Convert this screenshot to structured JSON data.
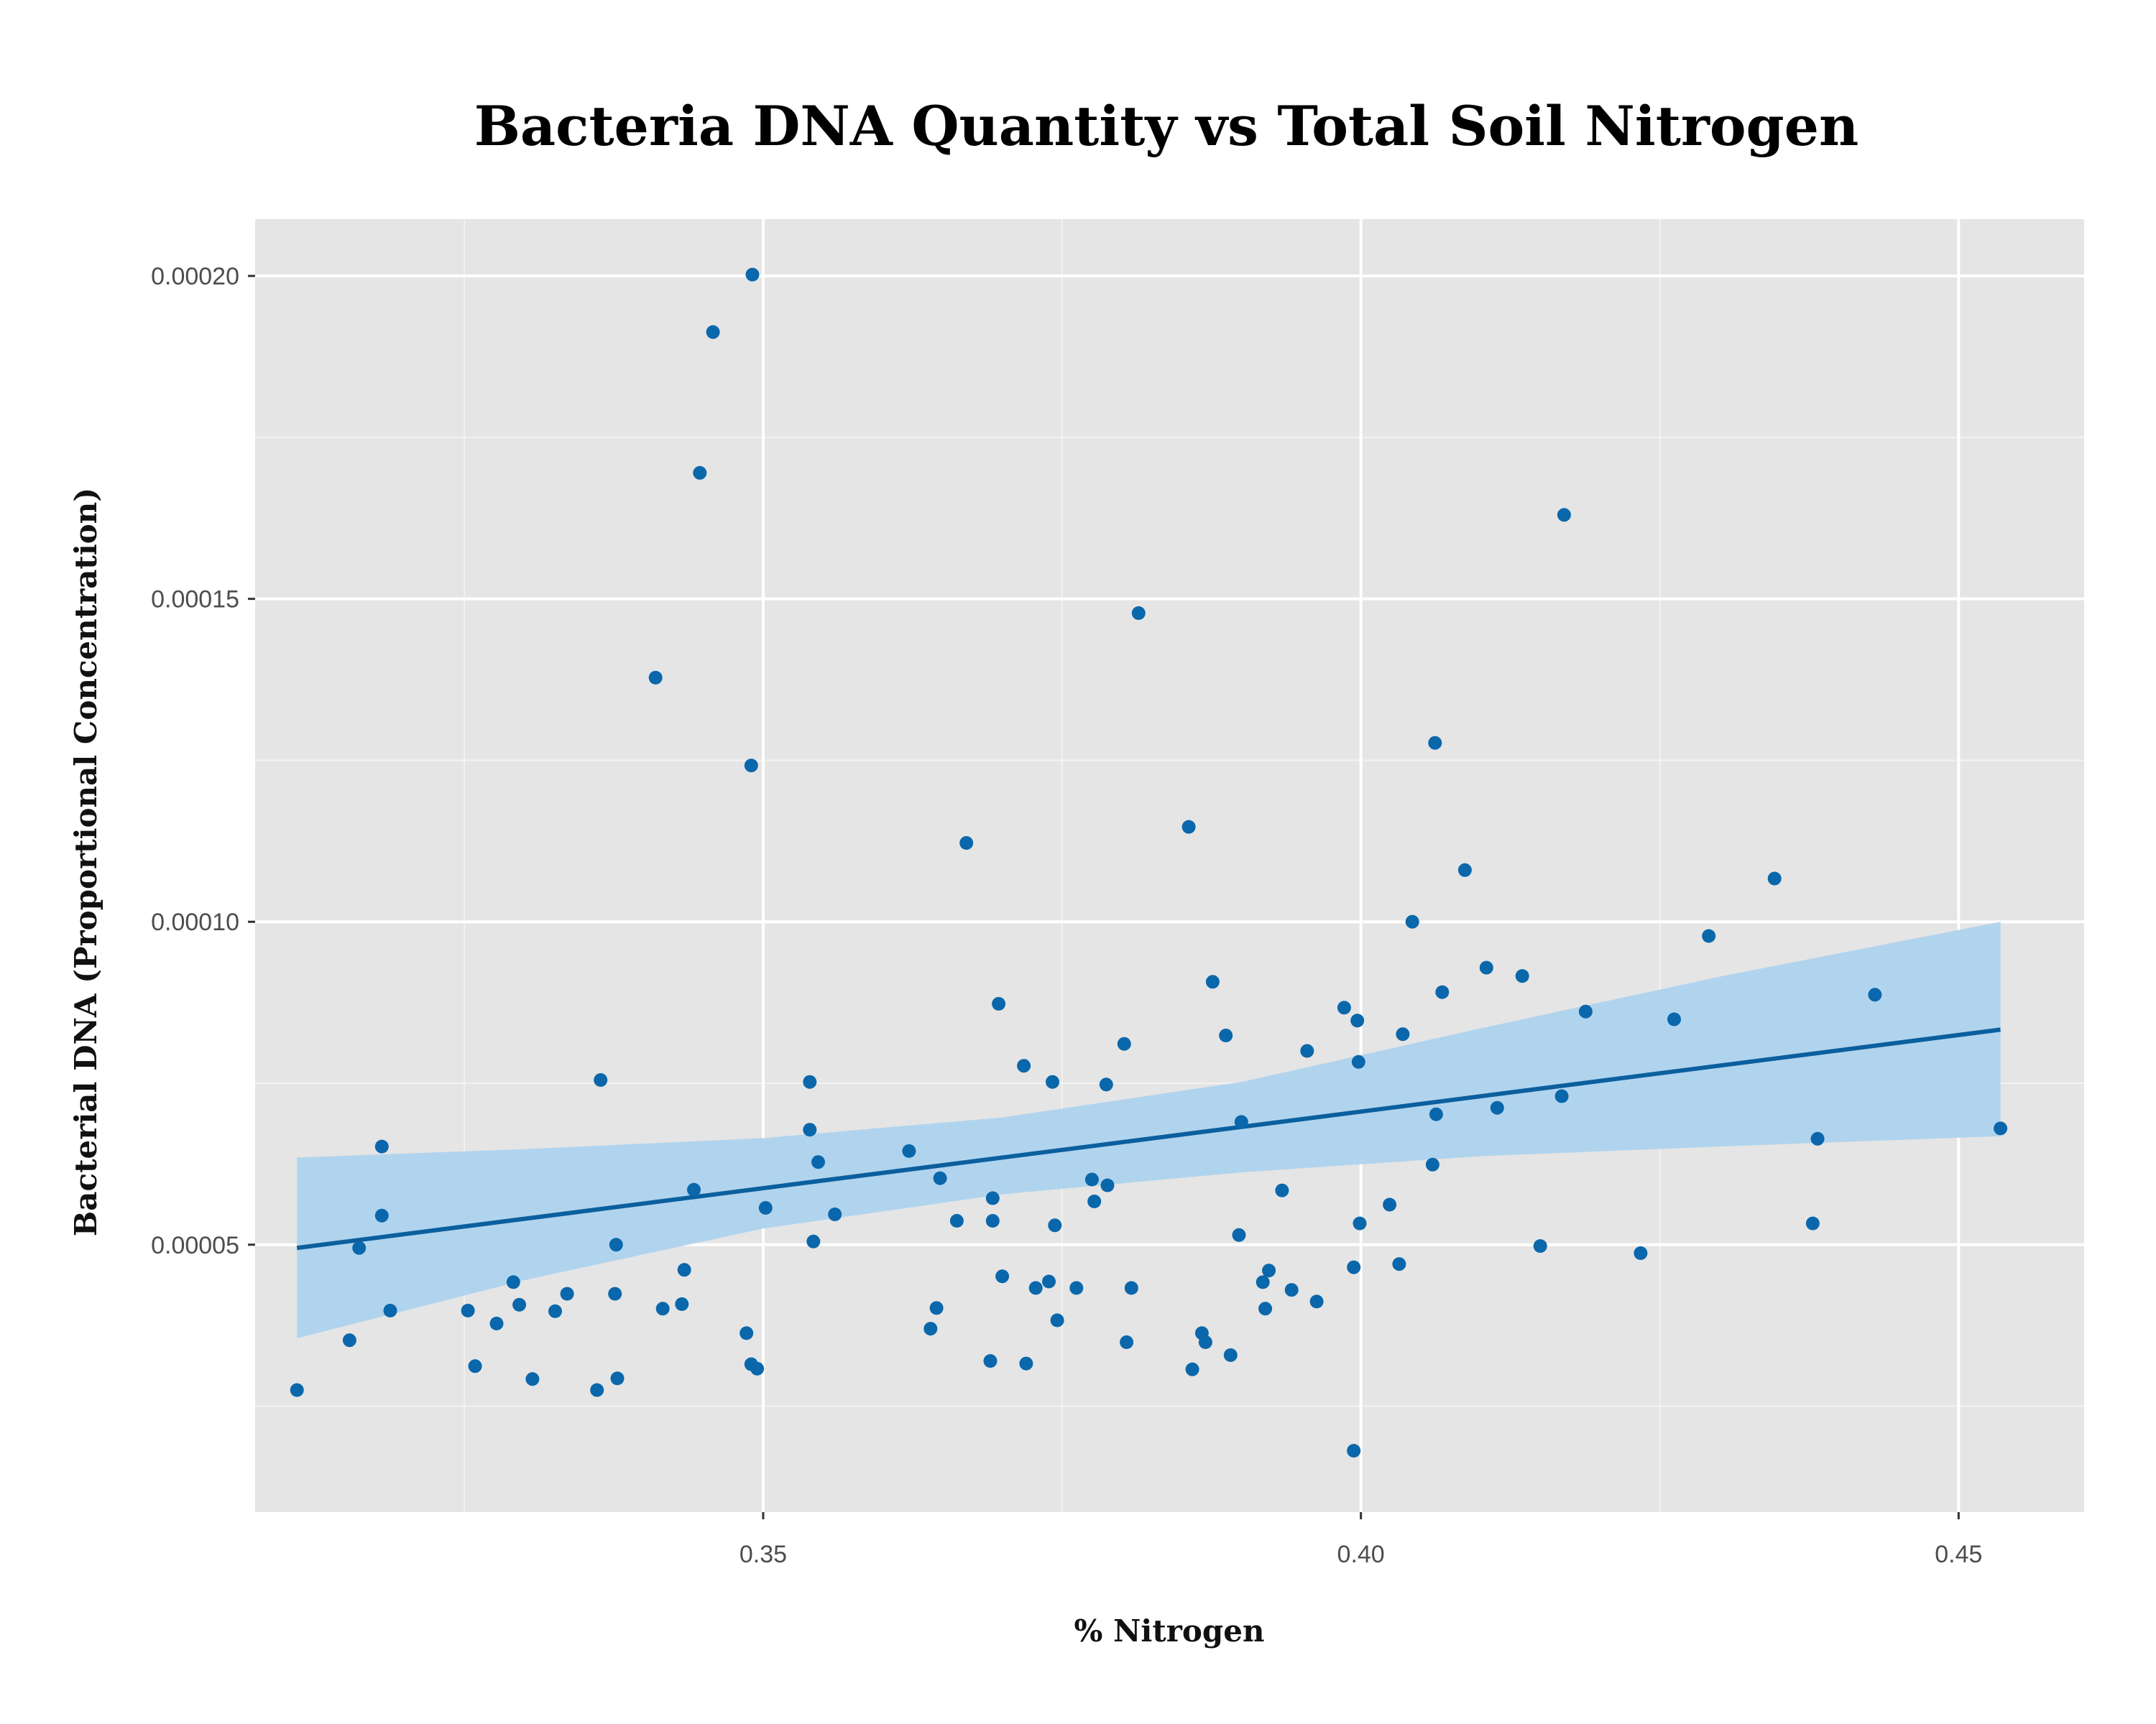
{
  "chart_data": {
    "type": "scatter",
    "title": "Bacteria DNA Quantity vs Total Soil Nitrogen",
    "xlabel": "% Nitrogen",
    "ylabel": "Bacterial DNA (Proportional Concentration)",
    "xlim": [
      0.3075,
      0.4605
    ],
    "ylim": [
      8.6e-06,
      0.0002088
    ],
    "x_ticks": [
      0.35,
      0.4,
      0.45
    ],
    "x_tick_labels": [
      "0.35",
      "0.40",
      "0.45"
    ],
    "y_ticks": [
      5e-05,
      0.0001,
      0.00015,
      0.0002
    ],
    "y_tick_labels": [
      "0.00005",
      "0.00010",
      "0.00015",
      "0.00020"
    ],
    "grid": true,
    "legend": "none",
    "colors": {
      "panel_background": "#e5e5e5",
      "grid_major": "#ffffff",
      "grid_minor": "#f2f2f2",
      "points": "#0b67ab",
      "fit_line": "#0b5f9e",
      "confidence_band": "#aed3ee"
    },
    "trend": {
      "method": "linear regression with confidence band",
      "x": [
        0.311,
        0.4535
      ],
      "y": [
        4.95e-05,
        8.33e-05
      ],
      "band_x": [
        0.311,
        0.33,
        0.35,
        0.37,
        0.39,
        0.41,
        0.43,
        0.4535
      ],
      "band_lower": [
        3.55e-05,
        4.45e-05,
        5.25e-05,
        5.78e-05,
        6.12e-05,
        6.37e-05,
        6.52e-05,
        6.68e-05
      ],
      "band_upper": [
        6.35e-05,
        6.48e-05,
        6.65e-05,
        6.97e-05,
        7.52e-05,
        8.35e-05,
        9.15e-05,
        0.0001
      ]
    },
    "points": [
      {
        "x": 0.311,
        "y": 2.75e-05
      },
      {
        "x": 0.3154,
        "y": 3.52e-05
      },
      {
        "x": 0.3162,
        "y": 4.95e-05
      },
      {
        "x": 0.3181,
        "y": 6.52e-05
      },
      {
        "x": 0.3181,
        "y": 5.45e-05
      },
      {
        "x": 0.3188,
        "y": 3.98e-05
      },
      {
        "x": 0.3253,
        "y": 3.98e-05
      },
      {
        "x": 0.3259,
        "y": 3.12e-05
      },
      {
        "x": 0.3277,
        "y": 3.78e-05
      },
      {
        "x": 0.3291,
        "y": 4.42e-05
      },
      {
        "x": 0.3296,
        "y": 4.07e-05
      },
      {
        "x": 0.3307,
        "y": 2.92e-05
      },
      {
        "x": 0.3326,
        "y": 3.97e-05
      },
      {
        "x": 0.3336,
        "y": 4.24e-05
      },
      {
        "x": 0.3361,
        "y": 2.75e-05
      },
      {
        "x": 0.3364,
        "y": 7.55e-05
      },
      {
        "x": 0.3376,
        "y": 4.24e-05
      },
      {
        "x": 0.3377,
        "y": 5e-05
      },
      {
        "x": 0.3378,
        "y": 2.93e-05
      },
      {
        "x": 0.341,
        "y": 0.0001378
      },
      {
        "x": 0.3416,
        "y": 4.01e-05
      },
      {
        "x": 0.3432,
        "y": 4.08e-05
      },
      {
        "x": 0.3434,
        "y": 4.61e-05
      },
      {
        "x": 0.3442,
        "y": 5.85e-05
      },
      {
        "x": 0.3447,
        "y": 0.0001695
      },
      {
        "x": 0.3458,
        "y": 0.0001913
      },
      {
        "x": 0.3486,
        "y": 3.63e-05
      },
      {
        "x": 0.349,
        "y": 0.0001242
      },
      {
        "x": 0.349,
        "y": 3.15e-05
      },
      {
        "x": 0.3491,
        "y": 0.0002002
      },
      {
        "x": 0.3495,
        "y": 3.08e-05
      },
      {
        "x": 0.3502,
        "y": 5.57e-05
      },
      {
        "x": 0.3539,
        "y": 7.52e-05
      },
      {
        "x": 0.3539,
        "y": 6.78e-05
      },
      {
        "x": 0.3542,
        "y": 5.05e-05
      },
      {
        "x": 0.3546,
        "y": 6.28e-05
      },
      {
        "x": 0.356,
        "y": 5.47e-05
      },
      {
        "x": 0.3622,
        "y": 6.45e-05
      },
      {
        "x": 0.364,
        "y": 3.7e-05
      },
      {
        "x": 0.3645,
        "y": 4.02e-05
      },
      {
        "x": 0.3648,
        "y": 6.03e-05
      },
      {
        "x": 0.3662,
        "y": 5.37e-05
      },
      {
        "x": 0.367,
        "y": 0.0001122
      },
      {
        "x": 0.369,
        "y": 3.2e-05
      },
      {
        "x": 0.3692,
        "y": 5.72e-05
      },
      {
        "x": 0.3692,
        "y": 5.37e-05
      },
      {
        "x": 0.3697,
        "y": 8.73e-05
      },
      {
        "x": 0.37,
        "y": 4.51e-05
      },
      {
        "x": 0.3718,
        "y": 7.77e-05
      },
      {
        "x": 0.372,
        "y": 3.16e-05
      },
      {
        "x": 0.3728,
        "y": 4.33e-05
      },
      {
        "x": 0.3739,
        "y": 4.43e-05
      },
      {
        "x": 0.3742,
        "y": 7.52e-05
      },
      {
        "x": 0.3744,
        "y": 5.3e-05
      },
      {
        "x": 0.3746,
        "y": 3.83e-05
      },
      {
        "x": 0.3762,
        "y": 4.33e-05
      },
      {
        "x": 0.3775,
        "y": 6.01e-05
      },
      {
        "x": 0.3777,
        "y": 5.67e-05
      },
      {
        "x": 0.3787,
        "y": 7.48e-05
      },
      {
        "x": 0.3788,
        "y": 5.92e-05
      },
      {
        "x": 0.3802,
        "y": 8.11e-05
      },
      {
        "x": 0.3804,
        "y": 3.49e-05
      },
      {
        "x": 0.3808,
        "y": 4.33e-05
      },
      {
        "x": 0.3814,
        "y": 0.0001478
      },
      {
        "x": 0.3856,
        "y": 0.0001147
      },
      {
        "x": 0.3859,
        "y": 3.07e-05
      },
      {
        "x": 0.3867,
        "y": 3.63e-05
      },
      {
        "x": 0.387,
        "y": 3.49e-05
      },
      {
        "x": 0.3876,
        "y": 9.07e-05
      },
      {
        "x": 0.3887,
        "y": 8.24e-05
      },
      {
        "x": 0.3891,
        "y": 3.29e-05
      },
      {
        "x": 0.3898,
        "y": 5.15e-05
      },
      {
        "x": 0.39,
        "y": 6.9e-05
      },
      {
        "x": 0.3918,
        "y": 4.42e-05
      },
      {
        "x": 0.392,
        "y": 4.01e-05
      },
      {
        "x": 0.3923,
        "y": 4.6e-05
      },
      {
        "x": 0.3934,
        "y": 5.84e-05
      },
      {
        "x": 0.3942,
        "y": 4.3e-05
      },
      {
        "x": 0.3955,
        "y": 8e-05
      },
      {
        "x": 0.3963,
        "y": 4.12e-05
      },
      {
        "x": 0.3986,
        "y": 8.67e-05
      },
      {
        "x": 0.3994,
        "y": 4.65e-05
      },
      {
        "x": 0.3994,
        "y": 1.81e-05
      },
      {
        "x": 0.3997,
        "y": 8.47e-05
      },
      {
        "x": 0.3998,
        "y": 7.83e-05
      },
      {
        "x": 0.3999,
        "y": 5.33e-05
      },
      {
        "x": 0.4024,
        "y": 5.62e-05
      },
      {
        "x": 0.4032,
        "y": 4.7e-05
      },
      {
        "x": 0.4035,
        "y": 8.26e-05
      },
      {
        "x": 0.4043,
        "y": 0.0001
      },
      {
        "x": 0.406,
        "y": 6.24e-05
      },
      {
        "x": 0.4062,
        "y": 0.0001277
      },
      {
        "x": 0.4063,
        "y": 7.02e-05
      },
      {
        "x": 0.4068,
        "y": 8.91e-05
      },
      {
        "x": 0.4087,
        "y": 0.000108
      },
      {
        "x": 0.4105,
        "y": 9.29e-05
      },
      {
        "x": 0.4114,
        "y": 7.12e-05
      },
      {
        "x": 0.4135,
        "y": 9.16e-05
      },
      {
        "x": 0.415,
        "y": 4.98e-05
      },
      {
        "x": 0.4168,
        "y": 7.3e-05
      },
      {
        "x": 0.417,
        "y": 0.000163
      },
      {
        "x": 0.4188,
        "y": 8.61e-05
      },
      {
        "x": 0.4234,
        "y": 4.87e-05
      },
      {
        "x": 0.4262,
        "y": 8.49e-05
      },
      {
        "x": 0.4291,
        "y": 9.78e-05
      },
      {
        "x": 0.4346,
        "y": 0.0001067
      },
      {
        "x": 0.4378,
        "y": 5.33e-05
      },
      {
        "x": 0.4382,
        "y": 6.64e-05
      },
      {
        "x": 0.443,
        "y": 8.87e-05
      },
      {
        "x": 0.4535,
        "y": 6.8e-05
      }
    ]
  }
}
